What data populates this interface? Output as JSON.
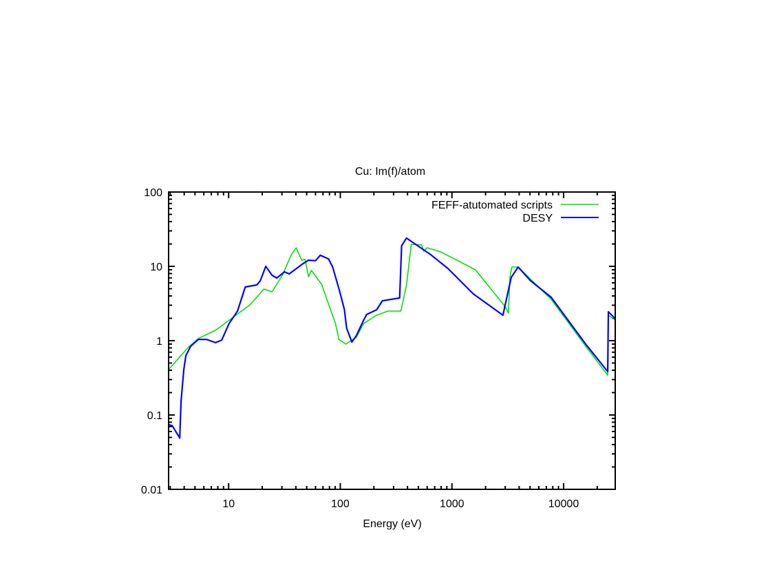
{
  "chart_data": {
    "type": "line",
    "title": "Cu: Im(f)/atom",
    "xlabel": "Energy (eV)",
    "ylabel": "",
    "xscale": "log",
    "yscale": "log",
    "xlim": [
      2.9,
      29000
    ],
    "ylim": [
      0.01,
      100
    ],
    "xticks": [
      10,
      100,
      1000,
      10000
    ],
    "xtick_labels": [
      "10",
      "100",
      "1000",
      "10000"
    ],
    "yticks": [
      0.01,
      0.1,
      1,
      10,
      100
    ],
    "ytick_labels": [
      "0.01",
      "0.1",
      "1",
      "10",
      "100"
    ],
    "grid": false,
    "legend_position": "top-right",
    "series": [
      {
        "name": "FEFF-atutomated scripts",
        "color": "#00e000",
        "points": [
          [
            2.9,
            0.408
          ],
          [
            4.33,
            0.808
          ],
          [
            5.35,
            1.07
          ],
          [
            7.63,
            1.38
          ],
          [
            11.2,
            2.11
          ],
          [
            15.5,
            3.03
          ],
          [
            20.7,
            4.95
          ],
          [
            24.5,
            4.54
          ],
          [
            30.3,
            7.58
          ],
          [
            36.5,
            14.4
          ],
          [
            40.3,
            17.8
          ],
          [
            45.1,
            12.1
          ],
          [
            48.4,
            12.4
          ],
          [
            52.0,
            7.26
          ],
          [
            55.1,
            8.8
          ],
          [
            68.1,
            5.74
          ],
          [
            78.5,
            3.1
          ],
          [
            90.6,
            1.7
          ],
          [
            97.3,
            1.04
          ],
          [
            112,
            0.899
          ],
          [
            139,
            1.11
          ],
          [
            162,
            1.7
          ],
          [
            212,
            2.2
          ],
          [
            267,
            2.5
          ],
          [
            349,
            2.5
          ],
          [
            391,
            5.5
          ],
          [
            432,
            19.8
          ],
          [
            535,
            19.4
          ],
          [
            558,
            16.0
          ],
          [
            600,
            17.8
          ],
          [
            796,
            15.6
          ],
          [
            1622,
            8.99
          ],
          [
            2985,
            2.9
          ],
          [
            3206,
            2.35
          ],
          [
            3304,
            7.11
          ],
          [
            3443,
            9.79
          ],
          [
            3917,
            9.79
          ],
          [
            7745,
            3.59
          ],
          [
            15780,
            0.843
          ],
          [
            24850,
            0.344
          ],
          [
            25180,
            2.2
          ],
          [
            29000,
            1.89
          ]
        ]
      },
      {
        "name": "DESY",
        "color": "#0000ff",
        "points": [
          [
            2.9,
            0.074
          ],
          [
            3.12,
            0.072
          ],
          [
            3.65,
            0.049
          ],
          [
            3.75,
            0.153
          ],
          [
            3.97,
            0.41
          ],
          [
            4.14,
            0.63
          ],
          [
            4.57,
            0.84
          ],
          [
            5.35,
            1.04
          ],
          [
            6.34,
            1.04
          ],
          [
            7.63,
            0.94
          ],
          [
            8.67,
            1.02
          ],
          [
            10.1,
            1.7
          ],
          [
            12.0,
            2.5
          ],
          [
            14.1,
            5.27
          ],
          [
            17.9,
            5.62
          ],
          [
            19.2,
            6.4
          ],
          [
            21.5,
            10.0
          ],
          [
            24.5,
            7.58
          ],
          [
            27.0,
            6.96
          ],
          [
            31.6,
            8.43
          ],
          [
            34.9,
            7.91
          ],
          [
            46.4,
            10.9
          ],
          [
            52.0,
            12.1
          ],
          [
            60,
            11.9
          ],
          [
            66.2,
            14.1
          ],
          [
            78.5,
            12.6
          ],
          [
            85.5,
            9.79
          ],
          [
            98.6,
            4.64
          ],
          [
            109,
            2.61
          ],
          [
            114,
            1.47
          ],
          [
            127,
            0.958
          ],
          [
            139,
            1.16
          ],
          [
            160,
            1.82
          ],
          [
            172,
            2.25
          ],
          [
            212,
            2.61
          ],
          [
            238,
            3.44
          ],
          [
            340,
            3.75
          ],
          [
            354,
            18.9
          ],
          [
            391,
            24.0
          ],
          [
            644,
            14.4
          ],
          [
            919,
            9.38
          ],
          [
            1553,
            4.26
          ],
          [
            2862,
            2.2
          ],
          [
            3396,
            7.11
          ],
          [
            3917,
            9.79
          ],
          [
            5058,
            6.4
          ],
          [
            7745,
            3.83
          ],
          [
            15780,
            0.899
          ],
          [
            24850,
            0.383
          ],
          [
            25180,
            2.45
          ],
          [
            29000,
            1.98
          ]
        ]
      }
    ]
  }
}
